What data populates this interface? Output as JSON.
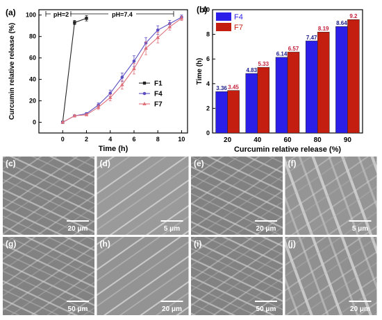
{
  "chart_data": [
    {
      "type": "line",
      "panel_label": "(a)",
      "xlabel": "Time (h)",
      "ylabel": "Curcumin relative release (%)",
      "xlim": [
        -2,
        10.5
      ],
      "ylim": [
        -10,
        105
      ],
      "xticks": [
        "0",
        "2",
        "4",
        "6",
        "8",
        "10"
      ],
      "yticks": [
        "0",
        "20",
        "40",
        "60",
        "80",
        "100"
      ],
      "annotations": [
        "pH=2",
        "pH=7.4"
      ],
      "legend_position": "center-right",
      "series": [
        {
          "name": "F1",
          "color": "#222222",
          "marker": "square",
          "x": [
            0,
            1,
            2
          ],
          "y": [
            0,
            93,
            97
          ],
          "err": [
            0,
            2,
            2.5
          ]
        },
        {
          "name": "F4",
          "color": "#5b4ec2",
          "marker": "circle",
          "x": [
            0,
            1,
            2,
            3,
            4,
            5,
            6,
            7,
            8,
            9,
            10
          ],
          "y": [
            0,
            6,
            8,
            16,
            27,
            42,
            57,
            74,
            86,
            92,
            98
          ],
          "err": [
            0,
            1,
            1,
            2,
            3,
            4,
            5,
            5,
            4,
            3,
            2
          ]
        },
        {
          "name": "F7",
          "color": "#e0707a",
          "marker": "triangle",
          "x": [
            0,
            1,
            2,
            3,
            4,
            5,
            6,
            7,
            8,
            9,
            10
          ],
          "y": [
            0,
            6,
            7,
            14,
            23,
            35,
            50,
            69,
            79,
            89,
            97
          ],
          "err": [
            0,
            1,
            1,
            2,
            3,
            4,
            5,
            6,
            5,
            3,
            2
          ]
        }
      ]
    },
    {
      "type": "bar",
      "panel_label": "(b)",
      "xlabel": "Curcumin relative release (%)",
      "ylabel": "Time (h)",
      "categories": [
        "20",
        "40",
        "60",
        "80",
        "90"
      ],
      "ylim": [
        0,
        10
      ],
      "yticks": [
        "0",
        "2",
        "4",
        "6",
        "8",
        "10"
      ],
      "legend_position": "top-left",
      "series": [
        {
          "name": "F4",
          "color": "#2a1ee8",
          "label_color": "#1a1a8a",
          "values": [
            3.36,
            4.83,
            6.14,
            7.47,
            8.64
          ],
          "labels": [
            "3.36",
            "4.83",
            "6.14",
            "7.47",
            "8.64"
          ]
        },
        {
          "name": "F7",
          "color": "#c41e10",
          "label_color": "#c41e3a",
          "values": [
            3.45,
            5.33,
            6.57,
            8.19,
            9.2
          ],
          "labels": [
            "3.45",
            "5.33",
            "6.57",
            "8.19",
            "9.2"
          ]
        }
      ]
    }
  ],
  "micrographs": [
    {
      "label": "(c)",
      "scale": "20 μm",
      "tone": "#8f8f8f"
    },
    {
      "label": "(d)",
      "scale": "5 μm",
      "tone": "#9a9a9a"
    },
    {
      "label": "(e)",
      "scale": "20 μm",
      "tone": "#8a8a8a"
    },
    {
      "label": "(f)",
      "scale": "5 μm",
      "tone": "#959595"
    },
    {
      "label": "(g)",
      "scale": "50 μm",
      "tone": "#8c8c8c"
    },
    {
      "label": "(h)",
      "scale": "20 μm",
      "tone": "#939393"
    },
    {
      "label": "(i)",
      "scale": "50 μm",
      "tone": "#8e8e8e"
    },
    {
      "label": "(j)",
      "scale": "20 μm",
      "tone": "#909090"
    }
  ]
}
